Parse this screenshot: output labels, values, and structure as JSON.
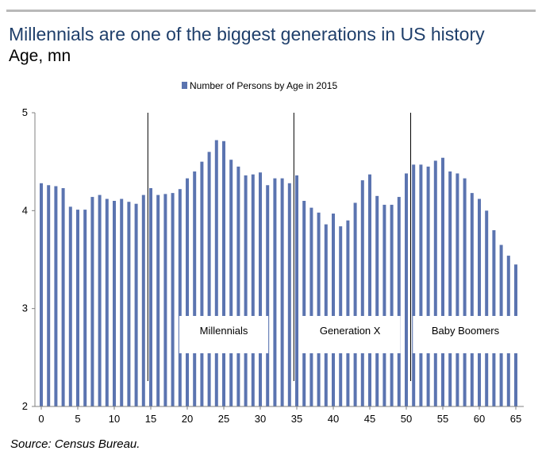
{
  "header": {
    "title": "Millennials are one of the biggest generations in US history",
    "subtitle": "Age, mn"
  },
  "footer": {
    "source": "Source:  Census Bureau."
  },
  "colors": {
    "bar": "#5b74b0",
    "title": "#1f3f6b",
    "axis": "#808080"
  },
  "chart_data": {
    "type": "bar",
    "legend": {
      "label": "Number of Persons by Age in 2015",
      "position": "top"
    },
    "x": [
      0,
      1,
      2,
      3,
      4,
      5,
      6,
      7,
      8,
      9,
      10,
      11,
      12,
      13,
      14,
      15,
      16,
      17,
      18,
      19,
      20,
      21,
      22,
      23,
      24,
      25,
      26,
      27,
      28,
      29,
      30,
      31,
      32,
      33,
      34,
      35,
      36,
      37,
      38,
      39,
      40,
      41,
      42,
      43,
      44,
      45,
      46,
      47,
      48,
      49,
      50,
      51,
      52,
      53,
      54,
      55,
      56,
      57,
      58,
      59,
      60,
      61,
      62,
      63,
      64,
      65
    ],
    "values": [
      4.28,
      4.26,
      4.25,
      4.23,
      4.04,
      4.01,
      4.01,
      4.14,
      4.16,
      4.12,
      4.1,
      4.12,
      4.09,
      4.07,
      4.16,
      4.23,
      4.16,
      4.17,
      4.18,
      4.22,
      4.33,
      4.4,
      4.5,
      4.6,
      4.72,
      4.71,
      4.52,
      4.45,
      4.36,
      4.37,
      4.39,
      4.26,
      4.33,
      4.33,
      4.28,
      4.36,
      4.1,
      4.03,
      3.98,
      3.86,
      3.97,
      3.84,
      3.9,
      4.08,
      4.31,
      4.37,
      4.15,
      4.06,
      4.06,
      4.14,
      4.38,
      4.47,
      4.47,
      4.45,
      4.51,
      4.54,
      4.4,
      4.38,
      4.33,
      4.18,
      4.12,
      4.0,
      3.8,
      3.65,
      3.54,
      3.45
    ],
    "x_ticks": [
      "0",
      "5",
      "10",
      "15",
      "20",
      "25",
      "30",
      "35",
      "40",
      "45",
      "50",
      "55",
      "60",
      "65"
    ],
    "y_ticks": [
      "2",
      "3",
      "4",
      "5"
    ],
    "ylim": [
      2,
      5
    ],
    "grid": false,
    "dividers": [
      {
        "x": 14.6
      },
      {
        "x": 34.6
      },
      {
        "x": 50.6
      }
    ],
    "annotations": [
      {
        "label": "Millennials",
        "x_from": 18.9,
        "x_to": 31.1
      },
      {
        "label": "Generation X",
        "x_from": 35.4,
        "x_to": 49.2
      },
      {
        "label": "Baby Boomers",
        "x_from": 50.9,
        "x_to": 65.3
      }
    ]
  }
}
